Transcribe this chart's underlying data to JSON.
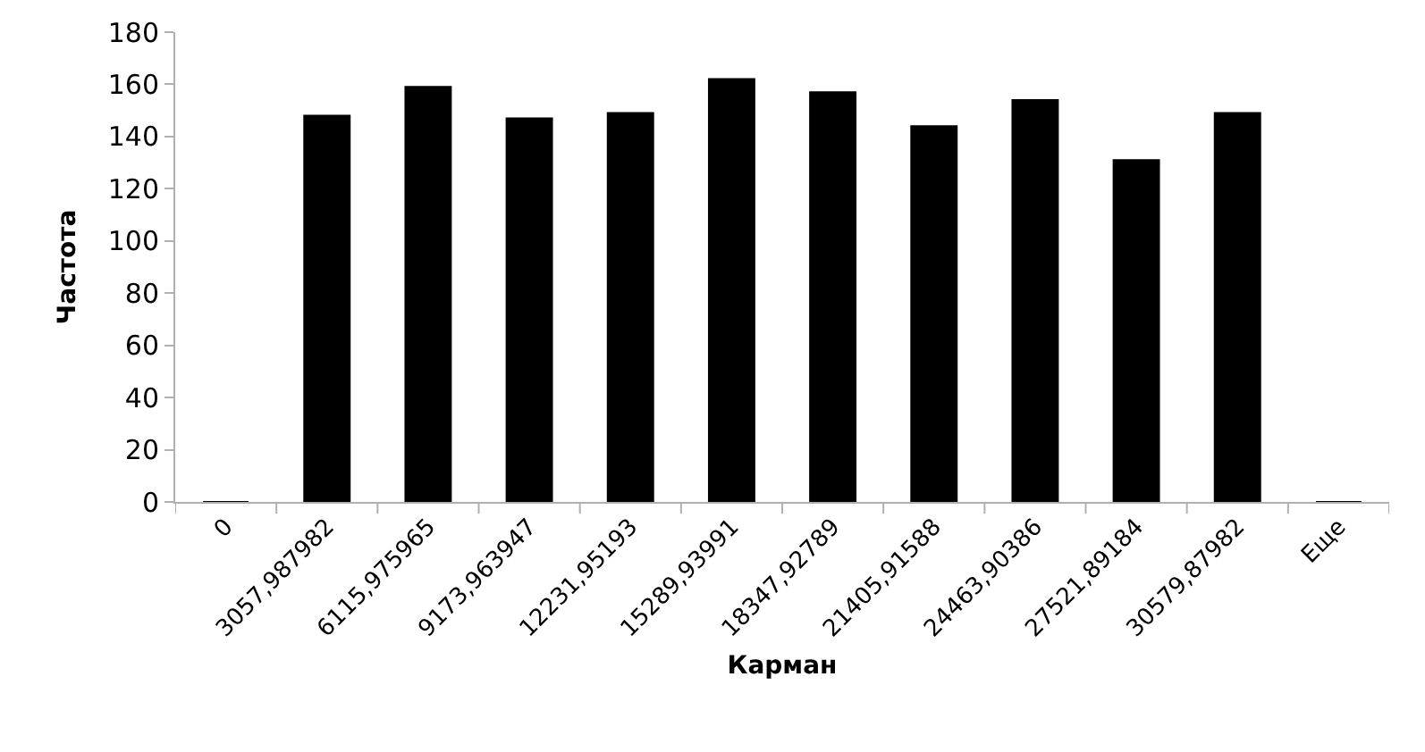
{
  "chart_data": {
    "type": "bar",
    "xlabel": "Карман",
    "ylabel": "Частота",
    "categories": [
      "0",
      "3057,987982",
      "6115,975965",
      "9173,963947",
      "12231,95193",
      "15289,93991",
      "18347,92789",
      "21405,91588",
      "24463,90386",
      "27521,89184",
      "30579,87982",
      "Еще"
    ],
    "values": [
      0,
      148,
      159,
      147,
      149,
      162,
      157,
      144,
      154,
      131,
      149,
      0
    ],
    "color": "#000000",
    "ylim": [
      0,
      180
    ],
    "yticks": [
      0,
      20,
      40,
      60,
      80,
      100,
      120,
      140,
      160,
      180
    ],
    "grid": false
  }
}
